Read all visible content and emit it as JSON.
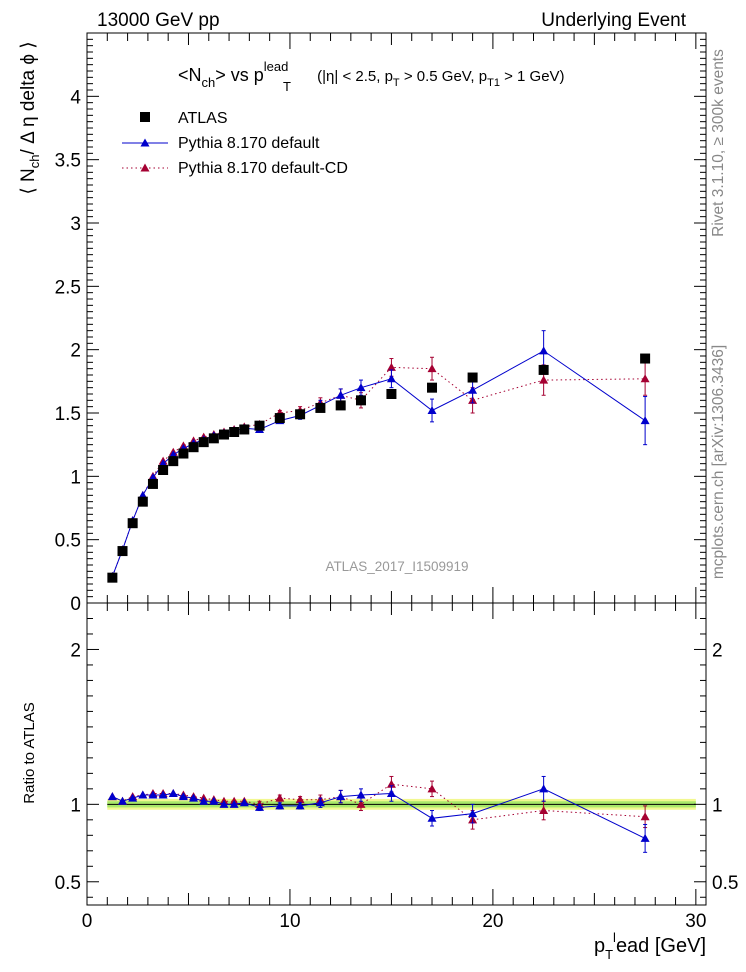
{
  "header": {
    "left": "13000 GeV pp",
    "right": "Underlying Event"
  },
  "side_labels": {
    "rivet": "Rivet 3.1.10, ≥ 300k events",
    "mcplots": "mcplots.cern.ch [arXiv:1306.3436]"
  },
  "watermark": "ATLAS_2017_I1509919",
  "chart_data": [
    {
      "panel": "main",
      "type": "scatter",
      "title": {
        "pre": "<N",
        "sub_ch": "ch",
        "mid": "> vs p",
        "sup_lead": "lead",
        "sub_T": "T",
        "cut1": " (|η| < 2.5, p",
        "cut1_sub": "T",
        "cut2": " > 0.5 GeV, p",
        "cut2_sub": "T1",
        "cut3": " > 1 GeV)"
      },
      "ylabel": {
        "a": "⟨ N",
        "sub": "ch",
        "b": "/ Δ η delta ϕ ⟩"
      },
      "xlim": [
        0,
        30.5
      ],
      "ylim": [
        0,
        4.5
      ],
      "yticks": [
        0,
        0.5,
        1,
        1.5,
        2,
        2.5,
        3,
        3.5,
        4
      ],
      "ytick_labels": [
        "0",
        "0.5",
        "1",
        "1.5",
        "2",
        "2.5",
        "3",
        "3.5",
        "4"
      ],
      "legend_position": "top-left",
      "series": [
        {
          "name": "ATLAS",
          "style": "marker",
          "marker": "square",
          "color": "#000000",
          "x": [
            1.25,
            1.75,
            2.25,
            2.75,
            3.25,
            3.75,
            4.25,
            4.75,
            5.25,
            5.75,
            6.25,
            6.75,
            7.25,
            7.75,
            8.5,
            9.5,
            10.5,
            11.5,
            12.5,
            13.5,
            15.0,
            17.0,
            19.0,
            22.5,
            27.5
          ],
          "y": [
            0.2,
            0.41,
            0.63,
            0.8,
            0.94,
            1.05,
            1.12,
            1.18,
            1.23,
            1.27,
            1.3,
            1.33,
            1.35,
            1.37,
            1.4,
            1.46,
            1.49,
            1.54,
            1.56,
            1.6,
            1.65,
            1.7,
            1.78,
            1.84,
            1.93
          ]
        },
        {
          "name": "Pythia 8.170 default",
          "style": "solid",
          "marker": "triangle",
          "color": "#0000cc",
          "x": [
            1.25,
            1.75,
            2.25,
            2.75,
            3.25,
            3.75,
            4.25,
            4.75,
            5.25,
            5.75,
            6.25,
            6.75,
            7.25,
            7.75,
            8.5,
            9.5,
            10.5,
            11.5,
            12.5,
            13.5,
            15.0,
            17.0,
            19.0,
            22.5,
            27.5
          ],
          "y": [
            0.21,
            0.42,
            0.65,
            0.85,
            0.99,
            1.1,
            1.17,
            1.22,
            1.26,
            1.29,
            1.32,
            1.34,
            1.36,
            1.38,
            1.37,
            1.44,
            1.48,
            1.56,
            1.64,
            1.7,
            1.77,
            1.52,
            1.68,
            1.99,
            1.44
          ],
          "err": [
            0.01,
            0.01,
            0.01,
            0.01,
            0.01,
            0.01,
            0.01,
            0.01,
            0.01,
            0.01,
            0.01,
            0.01,
            0.01,
            0.01,
            0.02,
            0.02,
            0.03,
            0.04,
            0.05,
            0.06,
            0.07,
            0.09,
            0.1,
            0.16,
            0.19
          ]
        },
        {
          "name": "Pythia 8.170 default-CD",
          "style": "dotted",
          "marker": "triangle",
          "color": "#a50032",
          "x": [
            1.25,
            1.75,
            2.25,
            2.75,
            3.25,
            3.75,
            4.25,
            4.75,
            5.25,
            5.75,
            6.25,
            6.75,
            7.25,
            7.75,
            8.5,
            9.5,
            10.5,
            11.5,
            12.5,
            13.5,
            15.0,
            17.0,
            19.0,
            22.5,
            27.5
          ],
          "y": [
            0.21,
            0.42,
            0.65,
            0.85,
            1.0,
            1.12,
            1.19,
            1.24,
            1.28,
            1.31,
            1.33,
            1.35,
            1.37,
            1.39,
            1.41,
            1.5,
            1.52,
            1.58,
            1.64,
            1.6,
            1.86,
            1.85,
            1.6,
            1.76,
            1.77
          ],
          "err": [
            0.01,
            0.01,
            0.01,
            0.01,
            0.01,
            0.01,
            0.01,
            0.01,
            0.01,
            0.01,
            0.01,
            0.01,
            0.01,
            0.01,
            0.02,
            0.02,
            0.03,
            0.04,
            0.05,
            0.06,
            0.07,
            0.09,
            0.1,
            0.12,
            0.13
          ]
        }
      ]
    },
    {
      "panel": "ratio",
      "type": "scatter",
      "ylabel": "Ratio to ATLAS",
      "xlabel": {
        "a": "p",
        "sub": "T",
        "sup": "l",
        "b": "ead [GeV]"
      },
      "xlim": [
        0,
        30.5
      ],
      "ylim": [
        0.35,
        2.3
      ],
      "xticks": [
        0,
        10,
        20,
        30
      ],
      "xtick_labels": [
        "0",
        "10",
        "20",
        "30"
      ],
      "yticks": [
        0.5,
        1,
        2
      ],
      "ytick_labels": [
        "0.5",
        "1",
        "2"
      ],
      "reference": {
        "y": 1.0,
        "band_inner": [
          0.98,
          1.02
        ],
        "band_outer": [
          0.965,
          1.035
        ]
      },
      "series": [
        {
          "name": "Pythia 8.170 default",
          "style": "solid",
          "marker": "triangle",
          "color": "#0000cc",
          "x": [
            1.25,
            1.75,
            2.25,
            2.75,
            3.25,
            3.75,
            4.25,
            4.75,
            5.25,
            5.75,
            6.25,
            6.75,
            7.25,
            7.75,
            8.5,
            9.5,
            10.5,
            11.5,
            12.5,
            13.5,
            15.0,
            17.0,
            19.0,
            22.5,
            27.5
          ],
          "y": [
            1.05,
            1.02,
            1.04,
            1.06,
            1.06,
            1.06,
            1.07,
            1.05,
            1.04,
            1.02,
            1.02,
            1.0,
            1.0,
            1.01,
            0.98,
            0.99,
            0.99,
            1.01,
            1.05,
            1.06,
            1.07,
            0.91,
            0.94,
            1.1,
            0.78
          ],
          "err": [
            0.01,
            0.01,
            0.01,
            0.01,
            0.01,
            0.01,
            0.01,
            0.01,
            0.01,
            0.01,
            0.01,
            0.01,
            0.01,
            0.01,
            0.02,
            0.02,
            0.02,
            0.03,
            0.04,
            0.04,
            0.05,
            0.05,
            0.06,
            0.08,
            0.09
          ]
        },
        {
          "name": "Pythia 8.170 default-CD",
          "style": "dotted",
          "marker": "triangle",
          "color": "#a50032",
          "x": [
            1.25,
            1.75,
            2.25,
            2.75,
            3.25,
            3.75,
            4.25,
            4.75,
            5.25,
            5.75,
            6.25,
            6.75,
            7.25,
            7.75,
            8.5,
            9.5,
            10.5,
            11.5,
            12.5,
            13.5,
            15.0,
            17.0,
            19.0,
            22.5,
            27.5
          ],
          "y": [
            1.05,
            1.02,
            1.05,
            1.06,
            1.07,
            1.07,
            1.07,
            1.06,
            1.05,
            1.04,
            1.03,
            1.02,
            1.02,
            1.02,
            1.0,
            1.04,
            1.03,
            1.03,
            1.05,
            1.0,
            1.13,
            1.1,
            0.9,
            0.96,
            0.92
          ],
          "err": [
            0.01,
            0.01,
            0.01,
            0.01,
            0.01,
            0.01,
            0.01,
            0.01,
            0.01,
            0.01,
            0.01,
            0.01,
            0.01,
            0.01,
            0.02,
            0.02,
            0.02,
            0.03,
            0.04,
            0.04,
            0.05,
            0.05,
            0.06,
            0.06,
            0.07
          ]
        }
      ]
    }
  ]
}
